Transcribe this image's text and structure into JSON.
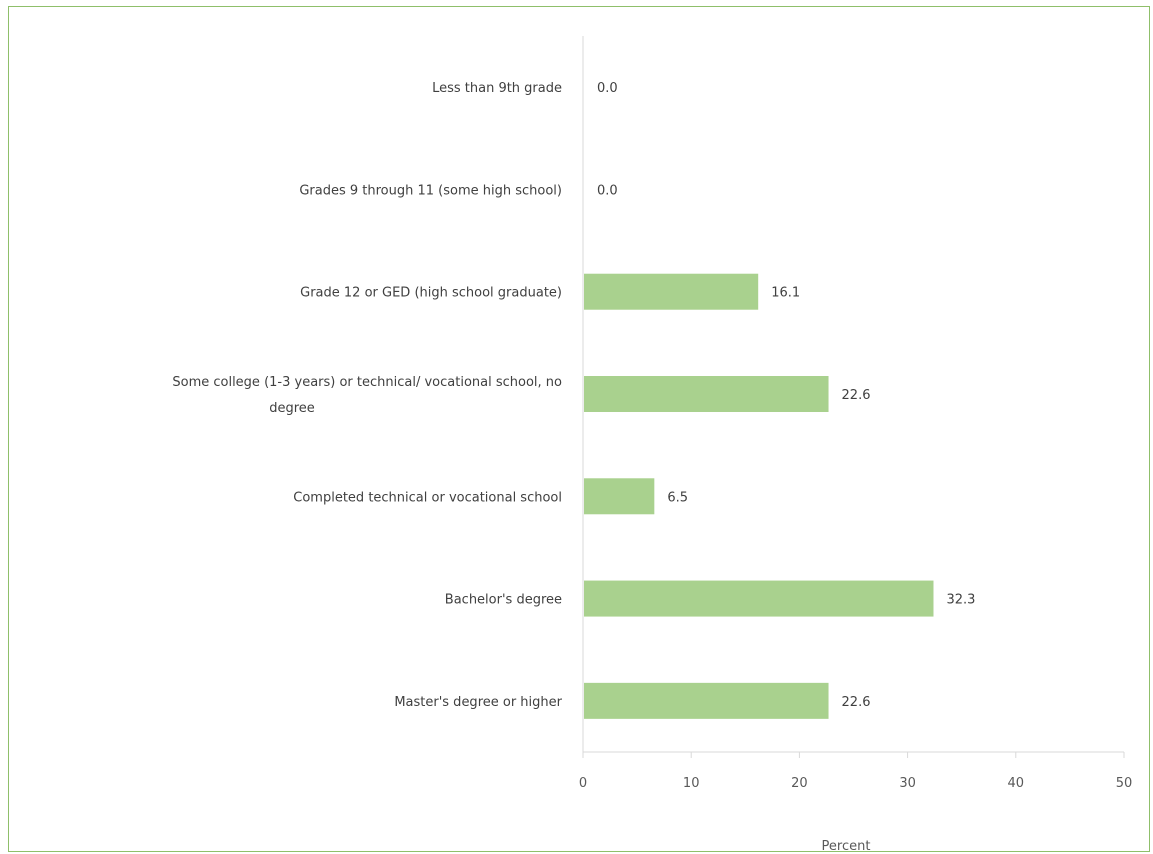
{
  "chart_data": {
    "type": "bar",
    "orientation": "horizontal",
    "title": "",
    "xlabel": "Percent",
    "ylabel": "",
    "xlim": [
      0,
      50
    ],
    "xticks": [
      0,
      10,
      20,
      30,
      40,
      50
    ],
    "grid": false,
    "bar_color": "#a9d18e",
    "categories": [
      [
        "Less than 9th grade"
      ],
      [
        "Grades 9 through 11 (some high school)"
      ],
      [
        "Grade 12 or GED (high school graduate)"
      ],
      [
        "Some college (1-3 years) or technical/ vocational school, no",
        "degree"
      ],
      [
        "Completed technical or vocational school"
      ],
      [
        "Bachelor's degree"
      ],
      [
        "Master's degree or higher"
      ]
    ],
    "values": [
      0.0,
      0.0,
      16.1,
      22.6,
      6.5,
      32.3,
      22.6
    ],
    "value_labels": [
      "0.0",
      "0.0",
      "16.1",
      "22.6",
      "6.5",
      "32.3",
      "22.6"
    ]
  }
}
